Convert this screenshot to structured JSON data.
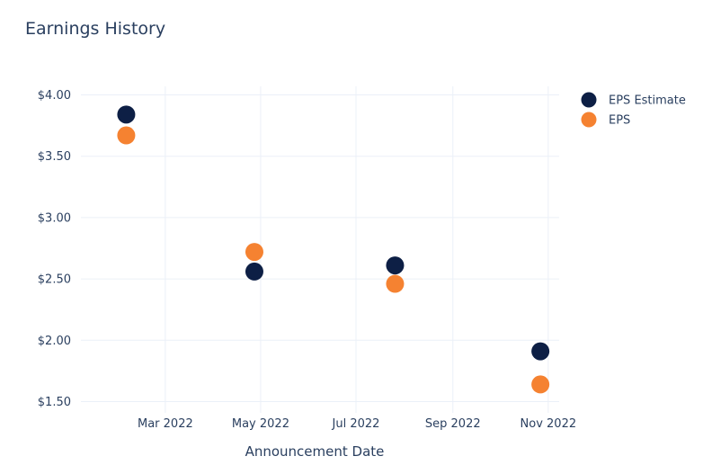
{
  "chart_data": {
    "type": "scatter",
    "title": "Earnings History",
    "xlabel": "Announcement Date",
    "ylabel": "",
    "x_axis_type": "date",
    "xlim": [
      "2022-01-06",
      "2022-11-08"
    ],
    "ylim": [
      1.5,
      4.0
    ],
    "x_ticks": [
      {
        "value": "2022-03-01",
        "label": "Mar 2022"
      },
      {
        "value": "2022-05-01",
        "label": "May 2022"
      },
      {
        "value": "2022-07-01",
        "label": "Jul 2022"
      },
      {
        "value": "2022-09-01",
        "label": "Sep 2022"
      },
      {
        "value": "2022-11-01",
        "label": "Nov 2022"
      }
    ],
    "y_ticks": [
      {
        "value": 1.5,
        "label": "$1.50"
      },
      {
        "value": 2.0,
        "label": "$2.00"
      },
      {
        "value": 2.5,
        "label": "$2.50"
      },
      {
        "value": 3.0,
        "label": "$3.00"
      },
      {
        "value": 3.5,
        "label": "$3.50"
      },
      {
        "value": 4.0,
        "label": "$4.00"
      }
    ],
    "grid": true,
    "legend_position": "top-right",
    "series": [
      {
        "name": "EPS Estimate",
        "color": "#0d1f45",
        "points": [
          {
            "x": "2022-02-04",
            "y": 3.84
          },
          {
            "x": "2022-04-27",
            "y": 2.56
          },
          {
            "x": "2022-07-26",
            "y": 2.61
          },
          {
            "x": "2022-10-27",
            "y": 1.91
          }
        ]
      },
      {
        "name": "EPS",
        "color": "#f58231",
        "points": [
          {
            "x": "2022-02-04",
            "y": 3.67
          },
          {
            "x": "2022-04-27",
            "y": 2.72
          },
          {
            "x": "2022-07-26",
            "y": 2.46
          },
          {
            "x": "2022-10-27",
            "y": 1.64
          }
        ]
      }
    ]
  }
}
